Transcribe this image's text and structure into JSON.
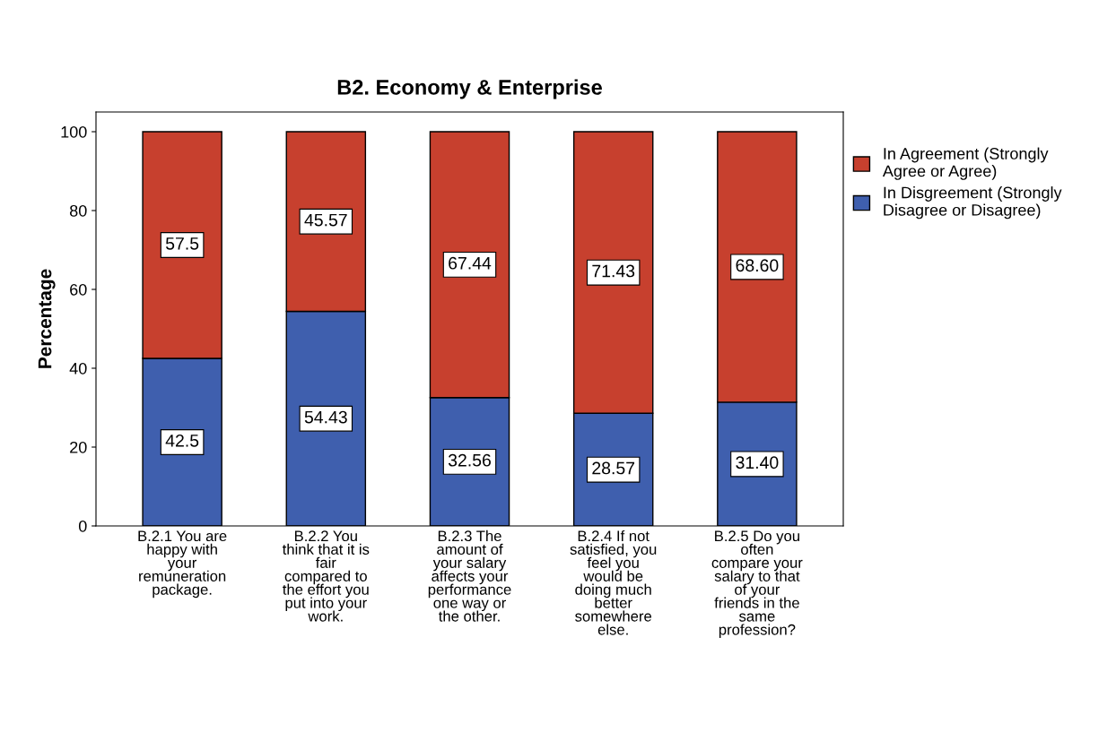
{
  "chart_data": {
    "type": "bar",
    "title": "B2. Economy & Enterprise",
    "ylabel": "Percentage",
    "categories": [
      "B.2.1 You are\nhappy with\nyour\nremuneration\npackage.",
      "B.2.2 You\nthink that it is\nfair\ncompared to\nthe effort you\nput into your\nwork.",
      "B.2.3 The\namount of\nyour salary\naffects your\nperformance\none way or\nthe other.",
      "B.2.4 If not\nsatisfied, you\nfeel you\nwould be\ndoing much\nbetter\nsomewhere\nelse.",
      "B.2.5 Do you\noften\ncompare your\nsalary to that\nof your\nfriends in the\nsame\nprofession?"
    ],
    "stacked": true,
    "series": [
      {
        "name": "In Disgreement (Strongly\nDisagree or Disagree)",
        "color": "#3f5fae",
        "values": [
          42.5,
          54.43,
          32.56,
          28.57,
          31.4
        ],
        "value_labels": [
          "42.5",
          "54.43",
          "32.56",
          "28.57",
          "31.40"
        ]
      },
      {
        "name": "In Agreement (Strongly\nAgree or Agree)",
        "color": "#c7402e",
        "values": [
          57.5,
          45.57,
          67.44,
          71.43,
          68.6
        ],
        "value_labels": [
          "57.5",
          "45.57",
          "67.44",
          "71.43",
          "68.60"
        ]
      }
    ],
    "ylim": [
      0,
      105
    ],
    "yticks": [
      0,
      20,
      40,
      60,
      80,
      100
    ],
    "grid": false,
    "legend": "right"
  }
}
